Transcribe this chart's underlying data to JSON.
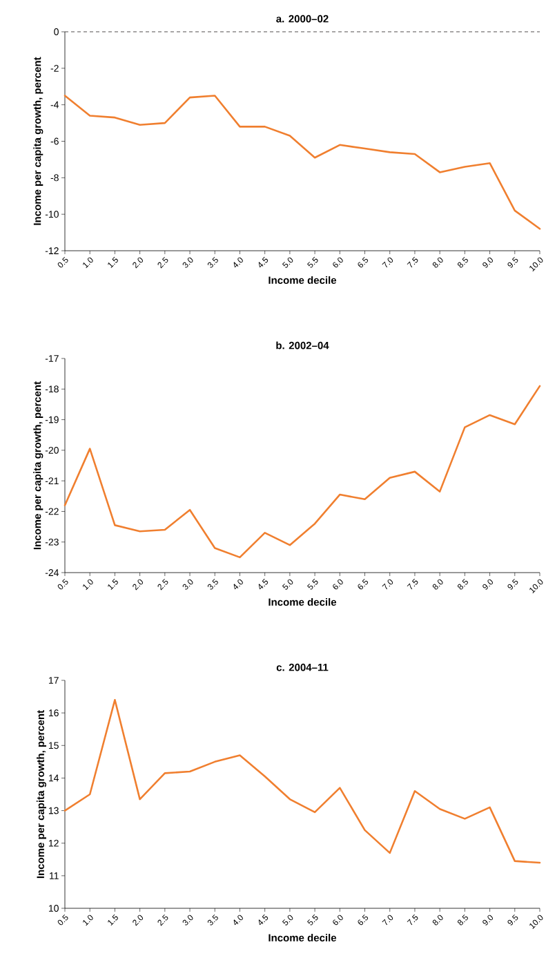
{
  "chart_data": [
    {
      "type": "line",
      "title": "**a. 2000–02**",
      "xlabel": "**Income decile**",
      "ylabel": "**Income per capita growth, percent**",
      "categories": [
        "0.5",
        "1.0",
        "1.5",
        "2.0",
        "2.5",
        "3.0",
        "3.5",
        "4.0",
        "4.5",
        "5.0",
        "5.5",
        "6.0",
        "6.5",
        "7.0",
        "7.5",
        "8.0",
        "8.5",
        "9.0",
        "9.5",
        "10.0"
      ],
      "series": [
        {
          "color": "#f07f2f",
          "values": [
            -3.5,
            -4.6,
            -4.7,
            -5.1,
            -5.0,
            -3.6,
            -3.5,
            -5.2,
            -5.2,
            -5.7,
            -6.9,
            -6.2,
            -6.4,
            -6.6,
            -6.7,
            -7.7,
            -7.4,
            -7.2,
            -9.8,
            -10.8
          ]
        }
      ],
      "ylim": [
        -12,
        0
      ],
      "yticks": [
        -12,
        -10,
        -8,
        -6,
        -4,
        -2,
        0
      ],
      "marker": "none",
      "ref_lines": [
        {
          "axis": "y",
          "value": 0,
          "color": "#231f20",
          "line_style": "dashed"
        }
      ]
    },
    {
      "type": "line",
      "title": "**b. 2002–04**",
      "xlabel": "**Income decile**",
      "ylabel": "**Income per capita growth, percent**",
      "categories": [
        "0.5",
        "1.0",
        "1.5",
        "2.0",
        "2.5",
        "3.0",
        "3.5",
        "4.0",
        "4.5",
        "5.0",
        "5.5",
        "6.0",
        "6.5",
        "7.0",
        "7.5",
        "8.0",
        "8.5",
        "9.0",
        "9.5",
        "10.0"
      ],
      "series": [
        {
          "color": "#f07f2f",
          "values": [
            -21.8,
            -19.95,
            -22.45,
            -22.65,
            -22.6,
            -21.95,
            -23.2,
            -23.5,
            -22.7,
            -23.1,
            -22.4,
            -21.45,
            -21.6,
            -20.9,
            -20.7,
            -21.35,
            -19.25,
            -18.85,
            -19.15,
            -17.9
          ]
        }
      ],
      "ylim": [
        -24,
        -17
      ],
      "yticks": [
        -24,
        -23,
        -22,
        -21,
        -20,
        -19,
        -18,
        -17
      ],
      "marker": "none"
    },
    {
      "type": "line",
      "title": "**c. 2004–11**",
      "xlabel": "**Income decile**",
      "ylabel": "**Income per capita growth, percent**",
      "categories": [
        "0.5",
        "1.0",
        "1.5",
        "2.0",
        "2.5",
        "3.0",
        "3.5",
        "4.0",
        "4.5",
        "5.0",
        "5.5",
        "6.0",
        "6.5",
        "7.0",
        "7.5",
        "8.0",
        "8.5",
        "9.0",
        "9.5",
        "10.0"
      ],
      "series": [
        {
          "color": "#f07f2f",
          "values": [
            13.0,
            13.5,
            16.4,
            13.35,
            14.15,
            14.2,
            14.5,
            14.7,
            14.05,
            13.35,
            12.95,
            13.7,
            12.4,
            11.7,
            13.6,
            13.05,
            12.75,
            13.1,
            11.45,
            11.4
          ]
        }
      ],
      "ylim": [
        10,
        17
      ],
      "yticks": [
        10,
        11,
        12,
        13,
        14,
        15,
        16,
        17
      ],
      "marker": "none"
    }
  ]
}
